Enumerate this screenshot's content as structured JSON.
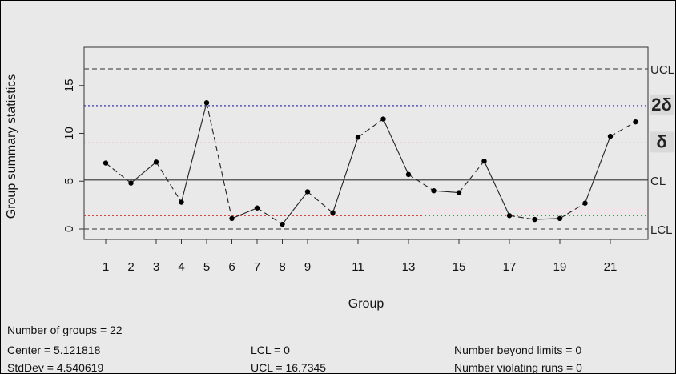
{
  "chart_data": {
    "type": "line",
    "title": "",
    "xlabel": "Group",
    "ylabel": "Group summary statistics",
    "xlim": [
      0,
      23
    ],
    "ylim": [
      0,
      18.5
    ],
    "x_ticks": [
      1,
      2,
      3,
      4,
      5,
      6,
      7,
      8,
      9,
      11,
      13,
      15,
      17,
      19,
      21
    ],
    "y_ticks": [
      0,
      5,
      10,
      15
    ],
    "x": [
      1,
      2,
      3,
      4,
      5,
      6,
      7,
      8,
      9,
      10,
      11,
      12,
      13,
      14,
      15,
      16,
      17,
      18,
      19,
      20,
      21,
      22
    ],
    "values": [
      6.9,
      4.8,
      7.0,
      2.8,
      13.2,
      1.1,
      2.2,
      0.5,
      3.9,
      1.7,
      9.6,
      11.5,
      5.7,
      4.0,
      3.8,
      7.1,
      1.4,
      1.0,
      1.1,
      2.7,
      9.7,
      11.2
    ],
    "reference_lines": [
      {
        "label": "UCL",
        "value": 16.7345,
        "color": "#555555",
        "style": "dashed"
      },
      {
        "label": "2δ",
        "value": 12.9,
        "color": "#3b3b9e",
        "style": "dotted"
      },
      {
        "label": "δ",
        "value": 9.0,
        "color": "#cc3333",
        "style": "dotted"
      },
      {
        "label": "CL",
        "value": 5.121818,
        "color": "#333333",
        "style": "solid"
      },
      {
        "label": "",
        "value": 1.4,
        "color": "#cc3333",
        "style": "dotted"
      },
      {
        "label": "LCL",
        "value": 0,
        "color": "#555555",
        "style": "dashed"
      }
    ]
  },
  "stats": {
    "groups": "Number of groups = 22",
    "center": "Center = 5.121818",
    "stddev": "StdDev = 4.540619",
    "lcl": "LCL = 0",
    "ucl": "UCL = 16.7345",
    "beyond": "Number beyond limits = 0",
    "violating": "Number violating runs = 0"
  }
}
